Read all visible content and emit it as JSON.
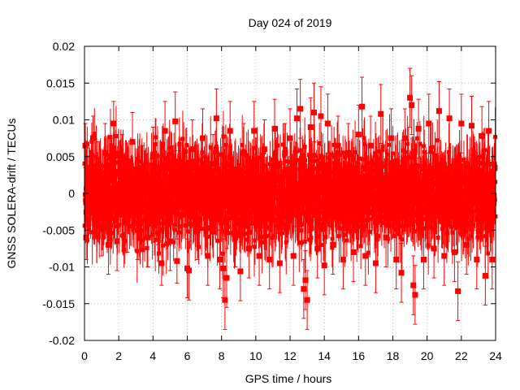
{
  "chart_data": {
    "type": "scatter",
    "title": "Day 024 of 2019",
    "xlabel": "GPS time / hours",
    "ylabel": "GNSS SOLERA-drift / TECUs",
    "xlim": [
      0,
      24
    ],
    "ylim": [
      -0.02,
      0.02
    ],
    "xticks": [
      "0",
      "2",
      "4",
      "6",
      "8",
      "10",
      "12",
      "14",
      "16",
      "18",
      "20",
      "22",
      "24"
    ],
    "yticks": [
      "-0.02",
      "-0.015",
      "-0.01",
      "-0.005",
      "0",
      "0.005",
      "0.01",
      "0.015",
      "0.02"
    ],
    "grid": true,
    "series_color": "#ff0000",
    "error_bars": true,
    "points": [
      [
        0.05,
        0.0065,
        0.003
      ],
      [
        0.1,
        -0.006,
        0.003
      ],
      [
        0.3,
        -0.0025,
        0.003
      ],
      [
        0.5,
        0.0075,
        0.003
      ],
      [
        0.8,
        0.003,
        0.004
      ],
      [
        1.0,
        -0.0045,
        0.004
      ],
      [
        1.2,
        0.0055,
        0.004
      ],
      [
        1.4,
        -0.007,
        0.004
      ],
      [
        1.6,
        0.0035,
        0.004
      ],
      [
        1.7,
        0.0095,
        0.003
      ],
      [
        1.9,
        -0.0065,
        0.004
      ],
      [
        2.2,
        0.004,
        0.004
      ],
      [
        2.5,
        -0.004,
        0.004
      ],
      [
        2.8,
        0.007,
        0.004
      ],
      [
        3.1,
        -0.005,
        0.004
      ],
      [
        3.4,
        0.0025,
        0.004
      ],
      [
        3.7,
        -0.006,
        0.004
      ],
      [
        4.0,
        0.005,
        0.004
      ],
      [
        4.3,
        -0.003,
        0.004
      ],
      [
        4.5,
        -0.0095,
        0.003
      ],
      [
        4.7,
        0.0085,
        0.004
      ],
      [
        5.0,
        -0.0065,
        0.004
      ],
      [
        5.3,
        0.0098,
        0.004
      ],
      [
        5.4,
        -0.0092,
        0.003
      ],
      [
        5.7,
        0.0035,
        0.004
      ],
      [
        6.0,
        -0.0102,
        0.004
      ],
      [
        6.1,
        -0.0105,
        0.004
      ],
      [
        6.3,
        0.006,
        0.004
      ],
      [
        6.6,
        -0.005,
        0.004
      ],
      [
        6.9,
        0.0075,
        0.004
      ],
      [
        7.2,
        -0.0085,
        0.004
      ],
      [
        7.5,
        0.004,
        0.004
      ],
      [
        7.7,
        0.0102,
        0.004
      ],
      [
        7.9,
        -0.009,
        0.004
      ],
      [
        8.1,
        -0.0102,
        0.004
      ],
      [
        8.2,
        -0.0145,
        0.004
      ],
      [
        8.3,
        -0.0115,
        0.004
      ],
      [
        8.5,
        0.0085,
        0.004
      ],
      [
        8.8,
        -0.006,
        0.004
      ],
      [
        9.1,
        -0.0106,
        0.004
      ],
      [
        9.3,
        0.0055,
        0.004
      ],
      [
        9.6,
        -0.0075,
        0.004
      ],
      [
        9.9,
        0.0085,
        0.004
      ],
      [
        10.2,
        -0.0085,
        0.004
      ],
      [
        10.5,
        0.006,
        0.004
      ],
      [
        10.8,
        -0.009,
        0.004
      ],
      [
        11.1,
        0.0088,
        0.004
      ],
      [
        11.4,
        -0.0095,
        0.004
      ],
      [
        11.7,
        0.0055,
        0.004
      ],
      [
        12.0,
        0.0075,
        0.004
      ],
      [
        12.2,
        -0.0085,
        0.004
      ],
      [
        12.4,
        0.0102,
        0.004
      ],
      [
        12.6,
        0.0115,
        0.004
      ],
      [
        12.8,
        -0.013,
        0.004
      ],
      [
        12.9,
        -0.0118,
        0.004
      ],
      [
        13.0,
        -0.0145,
        0.004
      ],
      [
        13.2,
        0.009,
        0.004
      ],
      [
        13.4,
        0.011,
        0.004
      ],
      [
        13.6,
        -0.0075,
        0.004
      ],
      [
        13.8,
        0.0105,
        0.004
      ],
      [
        14.0,
        -0.0098,
        0.004
      ],
      [
        14.2,
        0.0095,
        0.004
      ],
      [
        14.5,
        -0.007,
        0.004
      ],
      [
        14.8,
        0.0065,
        0.004
      ],
      [
        15.1,
        -0.009,
        0.004
      ],
      [
        15.4,
        0.0055,
        0.004
      ],
      [
        15.7,
        -0.008,
        0.004
      ],
      [
        16.0,
        0.008,
        0.004
      ],
      [
        16.2,
        0.0118,
        0.004
      ],
      [
        16.4,
        -0.0085,
        0.004
      ],
      [
        16.7,
        0.0065,
        0.004
      ],
      [
        17.0,
        -0.0095,
        0.004
      ],
      [
        17.3,
        0.0108,
        0.004
      ],
      [
        17.6,
        -0.006,
        0.004
      ],
      [
        17.9,
        0.0075,
        0.004
      ],
      [
        18.2,
        -0.009,
        0.004
      ],
      [
        18.5,
        -0.0108,
        0.004
      ],
      [
        18.7,
        0.0075,
        0.004
      ],
      [
        19.0,
        0.013,
        0.004
      ],
      [
        19.1,
        0.012,
        0.004
      ],
      [
        19.2,
        -0.0125,
        0.004
      ],
      [
        19.3,
        -0.0138,
        0.004
      ],
      [
        19.5,
        0.0088,
        0.004
      ],
      [
        19.8,
        -0.009,
        0.004
      ],
      [
        20.1,
        0.0095,
        0.004
      ],
      [
        20.4,
        -0.0075,
        0.004
      ],
      [
        20.7,
        0.0112,
        0.004
      ],
      [
        21.0,
        -0.0085,
        0.004
      ],
      [
        21.3,
        0.0102,
        0.004
      ],
      [
        21.6,
        -0.008,
        0.004
      ],
      [
        21.8,
        -0.0133,
        0.004
      ],
      [
        22.0,
        0.0095,
        0.004
      ],
      [
        22.3,
        -0.007,
        0.004
      ],
      [
        22.6,
        0.0092,
        0.004
      ],
      [
        22.9,
        -0.009,
        0.004
      ],
      [
        23.2,
        0.0078,
        0.004
      ],
      [
        23.4,
        -0.0112,
        0.004
      ],
      [
        23.6,
        0.0085,
        0.004
      ],
      [
        23.8,
        -0.009,
        0.004
      ],
      [
        23.95,
        0.0035,
        0.004
      ]
    ]
  }
}
